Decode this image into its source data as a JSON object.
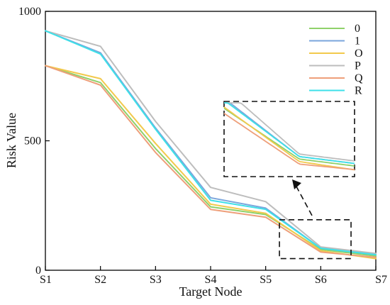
{
  "chart_data": {
    "type": "line",
    "xlabel": "Target Node",
    "ylabel": "Risk Value",
    "categories": [
      "S1",
      "S2",
      "S3",
      "S4",
      "S5",
      "S6",
      "S7"
    ],
    "y_ticks": [
      "0",
      "500",
      "1000"
    ],
    "ylim": [
      0,
      1000
    ],
    "legend_position": "top-right",
    "grid": false,
    "series": [
      {
        "name": "0",
        "color": "#8fd16a",
        "values": [
          790,
          725,
          470,
          245,
          215,
          80,
          55
        ]
      },
      {
        "name": "1",
        "color": "#7aa6dc",
        "values": [
          925,
          840,
          550,
          280,
          240,
          85,
          60
        ]
      },
      {
        "name": "O",
        "color": "#f2c94c",
        "values": [
          790,
          740,
          490,
          255,
          220,
          75,
          45
        ]
      },
      {
        "name": "P",
        "color": "#bdbdbd",
        "values": [
          925,
          865,
          575,
          320,
          265,
          90,
          65
        ]
      },
      {
        "name": "Q",
        "color": "#ee9f7a",
        "values": [
          790,
          715,
          455,
          235,
          205,
          70,
          50
        ]
      },
      {
        "name": "R",
        "color": "#3ee0e8",
        "values": [
          925,
          835,
          545,
          270,
          235,
          85,
          60
        ]
      }
    ],
    "inset": {
      "x_range": [
        4.25,
        5.55
      ],
      "y_range": [
        45,
        195
      ],
      "border": "dashed"
    }
  }
}
